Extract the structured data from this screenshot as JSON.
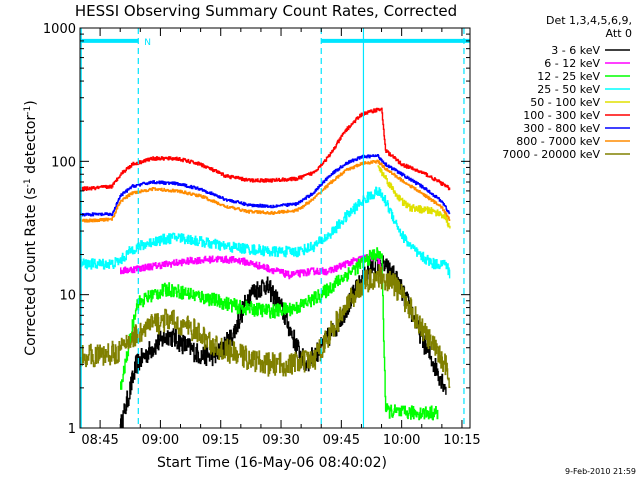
{
  "chart_data": {
    "type": "line",
    "title": "HESSI Observing Summary Count Rates, Corrected",
    "xlabel": "Start Time (16-May-06 08:40:02)",
    "ylabel_main": "Corrected Count Rate (s",
    "ylabel_sup1": "-1",
    "ylabel_mid": " detector",
    "ylabel_sup2": "-1",
    "ylabel_end": ")",
    "x_unit": "minutes after 08:40:02",
    "xlim": [
      0,
      97
    ],
    "ylim": [
      1,
      1000
    ],
    "y_scale": "log",
    "x_ticks": [
      {
        "t": 5,
        "label": "08:45"
      },
      {
        "t": 20,
        "label": "09:00"
      },
      {
        "t": 35,
        "label": "09:15"
      },
      {
        "t": 50,
        "label": "09:30"
      },
      {
        "t": 65,
        "label": "09:45"
      },
      {
        "t": 80,
        "label": "10:00"
      },
      {
        "t": 95,
        "label": "10:15"
      }
    ],
    "y_ticks": [
      {
        "v": 1,
        "label": "1"
      },
      {
        "v": 10,
        "label": "10"
      },
      {
        "v": 100,
        "label": "100"
      },
      {
        "v": 1000,
        "label": "1000"
      }
    ],
    "legend_header": [
      "Det 1,3,4,5,6,9,",
      "Att 0"
    ],
    "legend_position": "right",
    "segment_bar": {
      "label": "N",
      "color": "#00e5ff",
      "level": 800,
      "spans": [
        [
          0,
          14.5
        ],
        [
          60,
          97
        ]
      ]
    },
    "vertical_markers": [
      {
        "t": 0.3,
        "style": "solid",
        "color": "#00e5ff"
      },
      {
        "t": 14.5,
        "style": "dashed",
        "color": "#00e5ff"
      },
      {
        "t": 60,
        "style": "dashed",
        "color": "#00e5ff"
      },
      {
        "t": 70.5,
        "style": "solid",
        "color": "#00e5ff"
      },
      {
        "t": 95.5,
        "style": "dashed",
        "color": "#00e5ff"
      }
    ],
    "series": [
      {
        "name": "3 - 6 keV",
        "color": "#000000",
        "noise": 0.18,
        "points": [
          [
            10,
            1
          ],
          [
            14,
            3
          ],
          [
            18,
            4
          ],
          [
            22,
            5
          ],
          [
            26,
            4.2
          ],
          [
            30,
            3.5
          ],
          [
            34,
            3.5
          ],
          [
            38,
            5
          ],
          [
            42,
            10
          ],
          [
            46,
            12
          ],
          [
            48,
            10
          ],
          [
            50,
            8
          ],
          [
            54,
            4
          ],
          [
            56,
            3
          ],
          [
            60,
            4
          ],
          [
            64,
            6
          ],
          [
            68,
            10
          ],
          [
            71,
            14
          ],
          [
            73,
            17
          ],
          [
            75,
            17
          ],
          [
            78,
            14
          ],
          [
            82,
            8
          ],
          [
            86,
            4
          ],
          [
            88,
            3
          ],
          [
            91,
            2
          ]
        ]
      },
      {
        "name": "6 - 12 keV",
        "color": "#ff00ff",
        "noise": 0.06,
        "points": [
          [
            10,
            15
          ],
          [
            16,
            16
          ],
          [
            22,
            17
          ],
          [
            28,
            18
          ],
          [
            34,
            18.5
          ],
          [
            40,
            18
          ],
          [
            46,
            16
          ],
          [
            52,
            14
          ],
          [
            58,
            15
          ],
          [
            62,
            15
          ],
          [
            66,
            17
          ],
          [
            71,
            19
          ],
          [
            74,
            19
          ],
          [
            75,
            15
          ]
        ]
      },
      {
        "name": "12 - 25 keV",
        "color": "#00ff00",
        "noise": 0.12,
        "points": [
          [
            10,
            1.9
          ],
          [
            12,
            4
          ],
          [
            14,
            8.5
          ],
          [
            18,
            10
          ],
          [
            22,
            11
          ],
          [
            28,
            10
          ],
          [
            34,
            9
          ],
          [
            40,
            8
          ],
          [
            48,
            7.5
          ],
          [
            54,
            8
          ],
          [
            60,
            10
          ],
          [
            66,
            14
          ],
          [
            70,
            17
          ],
          [
            73,
            20
          ],
          [
            75,
            20
          ],
          [
            76,
            1.35
          ],
          [
            80,
            1.3
          ],
          [
            84,
            1.3
          ],
          [
            89,
            1.3
          ]
        ]
      },
      {
        "name": "25 - 50 keV",
        "color": "#00ffff",
        "noise": 0.09,
        "points": [
          [
            0,
            17
          ],
          [
            6,
            17
          ],
          [
            8,
            17
          ],
          [
            10,
            18
          ],
          [
            13,
            22
          ],
          [
            18,
            25
          ],
          [
            24,
            27
          ],
          [
            30,
            25
          ],
          [
            36,
            23
          ],
          [
            42,
            22
          ],
          [
            48,
            21
          ],
          [
            54,
            21
          ],
          [
            58,
            23
          ],
          [
            62,
            28
          ],
          [
            66,
            38
          ],
          [
            70,
            50
          ],
          [
            74,
            60
          ],
          [
            76,
            50
          ],
          [
            80,
            28
          ],
          [
            84,
            20
          ],
          [
            88,
            17
          ],
          [
            91,
            17
          ],
          [
            92,
            14
          ]
        ]
      },
      {
        "name": "50 - 100 keV",
        "color": "#e0e000",
        "noise": 0.06,
        "points": [
          [
            74,
            92
          ],
          [
            76,
            75
          ],
          [
            78,
            60
          ],
          [
            80,
            50
          ],
          [
            82,
            45
          ],
          [
            84,
            44
          ],
          [
            86,
            43
          ],
          [
            88,
            42
          ],
          [
            90,
            40
          ],
          [
            91,
            38
          ],
          [
            92,
            30
          ]
        ]
      },
      {
        "name": "100 - 300 keV",
        "color": "#ff0000",
        "noise": 0.03,
        "points": [
          [
            0,
            62
          ],
          [
            4,
            63
          ],
          [
            8,
            65
          ],
          [
            10,
            80
          ],
          [
            13,
            95
          ],
          [
            18,
            105
          ],
          [
            24,
            105
          ],
          [
            30,
            95
          ],
          [
            36,
            78
          ],
          [
            42,
            72
          ],
          [
            48,
            72
          ],
          [
            54,
            74
          ],
          [
            58,
            82
          ],
          [
            62,
            110
          ],
          [
            66,
            170
          ],
          [
            70,
            225
          ],
          [
            74,
            245
          ],
          [
            75,
            245
          ],
          [
            76,
            120
          ],
          [
            80,
            95
          ],
          [
            86,
            80
          ],
          [
            90,
            68
          ],
          [
            92,
            62
          ]
        ]
      },
      {
        "name": "300 - 800 keV",
        "color": "#0000ff",
        "noise": 0.025,
        "points": [
          [
            0,
            40
          ],
          [
            4,
            40
          ],
          [
            8,
            40
          ],
          [
            10,
            55
          ],
          [
            13,
            65
          ],
          [
            18,
            70
          ],
          [
            24,
            68
          ],
          [
            30,
            62
          ],
          [
            36,
            52
          ],
          [
            42,
            47
          ],
          [
            48,
            46
          ],
          [
            54,
            48
          ],
          [
            58,
            58
          ],
          [
            62,
            78
          ],
          [
            66,
            96
          ],
          [
            70,
            108
          ],
          [
            74,
            110
          ],
          [
            76,
            95
          ],
          [
            80,
            80
          ],
          [
            86,
            62
          ],
          [
            90,
            50
          ],
          [
            92,
            40
          ]
        ]
      },
      {
        "name": "800 - 7000 keV",
        "color": "#ff8c00",
        "noise": 0.025,
        "points": [
          [
            0,
            36
          ],
          [
            4,
            36
          ],
          [
            8,
            37
          ],
          [
            10,
            50
          ],
          [
            13,
            58
          ],
          [
            18,
            62
          ],
          [
            24,
            60
          ],
          [
            30,
            55
          ],
          [
            36,
            46
          ],
          [
            42,
            42
          ],
          [
            48,
            41
          ],
          [
            54,
            43
          ],
          [
            58,
            52
          ],
          [
            62,
            68
          ],
          [
            66,
            85
          ],
          [
            70,
            96
          ],
          [
            74,
            100
          ],
          [
            76,
            88
          ],
          [
            80,
            72
          ],
          [
            86,
            55
          ],
          [
            90,
            45
          ],
          [
            92,
            36
          ]
        ]
      },
      {
        "name": "7000 - 20000 keV",
        "color": "#808000",
        "noise": 0.2,
        "points": [
          [
            0,
            3.5
          ],
          [
            6,
            3.5
          ],
          [
            10,
            3.8
          ],
          [
            13,
            4.8
          ],
          [
            18,
            6
          ],
          [
            22,
            6.5
          ],
          [
            28,
            5.5
          ],
          [
            34,
            4
          ],
          [
            40,
            3.5
          ],
          [
            46,
            3
          ],
          [
            52,
            3
          ],
          [
            58,
            3.2
          ],
          [
            62,
            5
          ],
          [
            66,
            8
          ],
          [
            70,
            12
          ],
          [
            74,
            14
          ],
          [
            78,
            12
          ],
          [
            82,
            8
          ],
          [
            86,
            5
          ],
          [
            88,
            4
          ],
          [
            91,
            3
          ],
          [
            92,
            2
          ]
        ]
      }
    ]
  },
  "footer": {
    "timestamp": "9-Feb-2010 21:59"
  }
}
